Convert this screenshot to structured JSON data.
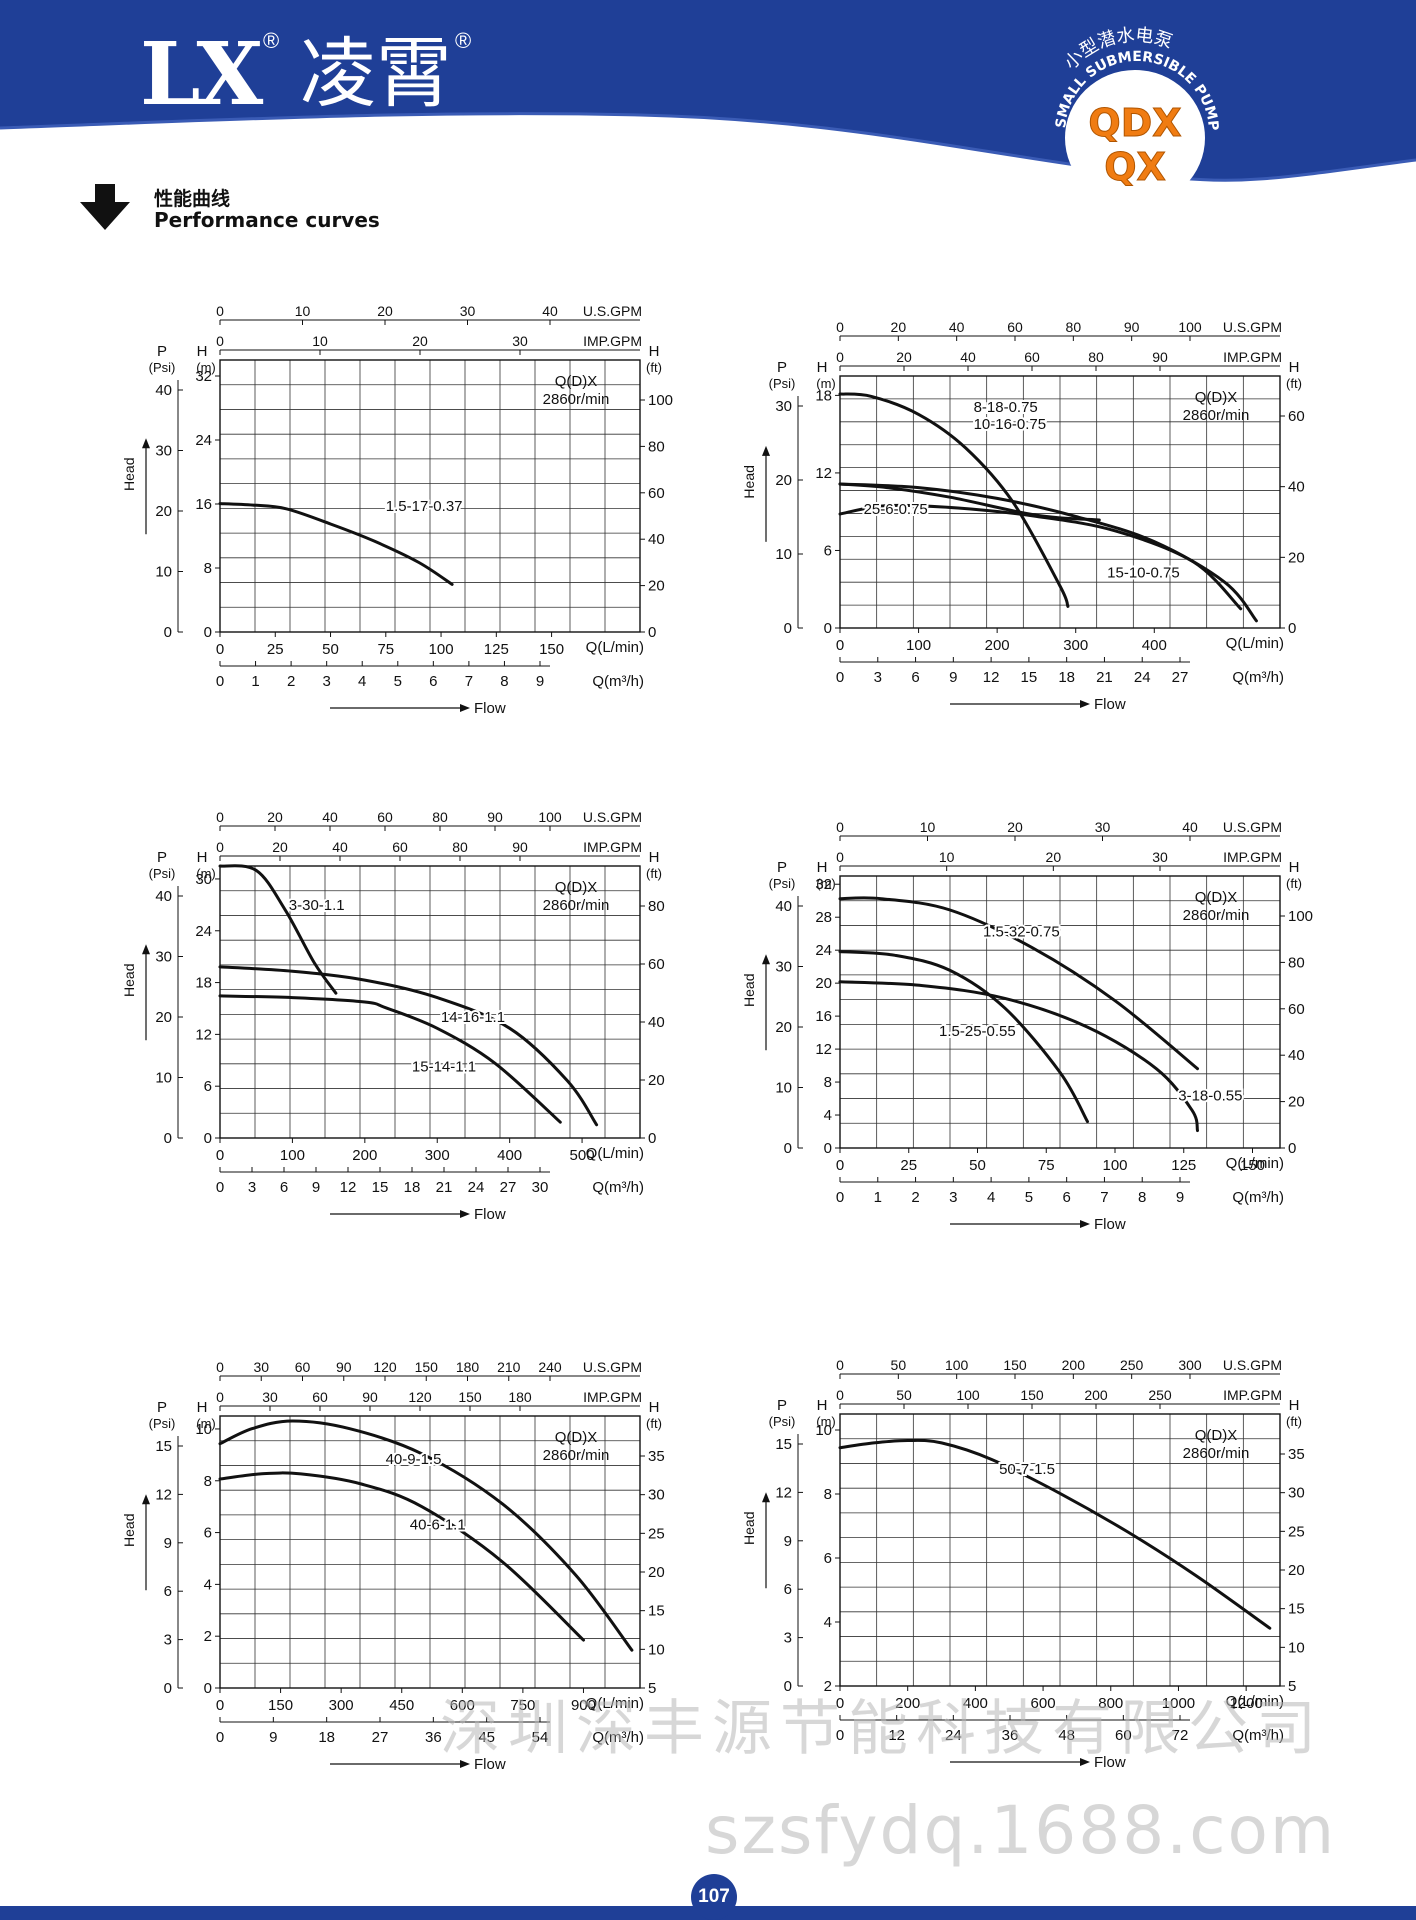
{
  "header": {
    "logo_text": "LX",
    "brand_cn": "凌霄",
    "reg_mark": "®",
    "badge_arc_cn": "小型潜水电泵",
    "badge_arc_en": "SMALL SUBMERSIBLE PUMP",
    "badge_model1": "QDX",
    "badge_model2": "QX",
    "colors": {
      "band": "#1f3f97",
      "accent": "#f07c12",
      "badge_text": "#ffffff"
    }
  },
  "section": {
    "title_cn": "性能曲线",
    "title_en": "Performance curves",
    "icon": "down-arrow-icon"
  },
  "watermarks": {
    "cn": "深圳深丰源节能科技有限公司",
    "url": "szsfydq.1688.com"
  },
  "page_number": "107",
  "chart_data": [
    {
      "type": "line",
      "model_label": "Q(D)X",
      "speed_label": "2860r/min",
      "grid": true,
      "xlim": [
        0,
        190
      ],
      "ylim": [
        0,
        36
      ],
      "x_bottom_ticks": [
        "0",
        "25",
        "50",
        "75",
        "100",
        "125",
        "150"
      ],
      "x_bottom_unit": "Q(L/min)",
      "x_m3h_ticks": [
        "0",
        "1",
        "2",
        "3",
        "4",
        "5",
        "6",
        "7",
        "8",
        "9"
      ],
      "x_m3h_unit": "Q(m³/h)",
      "x_top_ticks": [
        "0",
        "10",
        "20",
        "30",
        "40"
      ],
      "x_top_unit": "U.S.GPM",
      "x_imp_ticks": [
        "0",
        "10",
        "20",
        "30"
      ],
      "x_imp_unit": "IMP.GPM",
      "y_h_ticks": [
        "0",
        "8",
        "16",
        "24",
        "32"
      ],
      "y_h_unit": "H",
      "y_h_sub": "(m)",
      "y_ft_ticks": [
        "0",
        "20",
        "40",
        "60",
        "80",
        "100"
      ],
      "y_ft_unit": "H",
      "y_ft_sub": "(ft)",
      "y_psi_ticks": [
        "0",
        "10",
        "20",
        "30",
        "40"
      ],
      "y_psi_unit": "P",
      "y_psi_sub": "(Psi)",
      "ylabel": "Head",
      "xlabel": "Flow",
      "series": [
        {
          "name": "1.5-17-0.37",
          "x": [
            0,
            15,
            30,
            50,
            70,
            90,
            105
          ],
          "y": [
            17,
            16.8,
            16.3,
            14.3,
            12,
            9.2,
            6.3
          ],
          "label_x": 75,
          "label_y": 16
        }
      ]
    },
    {
      "type": "line",
      "model_label": "Q(D)X",
      "speed_label": "2860r/min",
      "grid": true,
      "xlim": [
        0,
        560
      ],
      "ylim": [
        0,
        21
      ],
      "x_bottom_ticks": [
        "0",
        "100",
        "200",
        "300",
        "400"
      ],
      "x_bottom_unit": "Q(L/min)",
      "x_m3h_ticks": [
        "0",
        "3",
        "6",
        "9",
        "12",
        "15",
        "18",
        "21",
        "24",
        "27"
      ],
      "x_m3h_unit": "Q(m³/h)",
      "x_top_ticks": [
        "0",
        "20",
        "40",
        "60",
        "80",
        "90",
        "100"
      ],
      "x_top_unit": "U.S.GPM",
      "x_imp_ticks": [
        "0",
        "20",
        "40",
        "60",
        "80",
        "90"
      ],
      "x_imp_unit": "IMP.GPM",
      "y_h_ticks": [
        "0",
        "6",
        "12",
        "18"
      ],
      "y_h_unit": "H",
      "y_h_sub": "(m)",
      "y_ft_ticks": [
        "0",
        "20",
        "40",
        "60"
      ],
      "y_ft_unit": "H",
      "y_ft_sub": "(ft)",
      "y_psi_ticks": [
        "0",
        "10",
        "20",
        "30"
      ],
      "y_psi_unit": "P",
      "y_psi_sub": "(Psi)",
      "ylabel": "Head",
      "xlabel": "Flow",
      "series": [
        {
          "name": "8-18-0.75",
          "x": [
            0,
            40,
            100,
            160,
            220,
            280,
            290
          ],
          "y": [
            19.5,
            19.3,
            17.8,
            15,
            10.5,
            3.5,
            1.8
          ],
          "label_x": 170,
          "label_y": 18
        },
        {
          "name": "10-16-0.75",
          "x": [
            0,
            60,
            140,
            250,
            330
          ],
          "y": [
            12,
            11.7,
            10.9,
            9.4,
            9.0
          ],
          "label_x": 170,
          "label_y": 16.6
        },
        {
          "name": "25-6-0.75",
          "x": [
            0,
            60,
            150,
            250,
            350,
            450,
            510
          ],
          "y": [
            9.5,
            10.2,
            10,
            9.3,
            8.1,
            5.5,
            1.6
          ],
          "label_x": 30,
          "label_y": 9.5
        },
        {
          "name": "15-10-0.75",
          "x": [
            0,
            100,
            200,
            300,
            400,
            490,
            530
          ],
          "y": [
            12,
            11.7,
            10.8,
            9.3,
            7.2,
            3.8,
            0.6
          ],
          "label_x": 340,
          "label_y": 4.2
        }
      ]
    },
    {
      "type": "line",
      "model_label": "Q(D)X",
      "speed_label": "2860r/min",
      "grid": true,
      "xlim": [
        0,
        580
      ],
      "ylim": [
        0,
        31
      ],
      "x_bottom_ticks": [
        "0",
        "100",
        "200",
        "300",
        "400",
        "500"
      ],
      "x_bottom_unit": "Q(L/min)",
      "x_m3h_ticks": [
        "0",
        "3",
        "6",
        "9",
        "12",
        "15",
        "18",
        "21",
        "24",
        "27",
        "30"
      ],
      "x_m3h_unit": "Q(m³/h)",
      "x_top_ticks": [
        "0",
        "20",
        "40",
        "60",
        "80",
        "90",
        "100"
      ],
      "x_top_unit": "U.S.GPM",
      "x_imp_ticks": [
        "0",
        "20",
        "40",
        "60",
        "80",
        "90"
      ],
      "x_imp_unit": "IMP.GPM",
      "y_h_ticks": [
        "0",
        "6",
        "12",
        "18",
        "24",
        "30"
      ],
      "y_h_unit": "H",
      "y_h_sub": "(m)",
      "y_ft_ticks": [
        "0",
        "20",
        "40",
        "60",
        "80"
      ],
      "y_ft_unit": "H",
      "y_ft_sub": "(ft)",
      "y_psi_ticks": [
        "0",
        "10",
        "20",
        "30",
        "40"
      ],
      "y_psi_unit": "P",
      "y_psi_sub": "(Psi)",
      "ylabel": "Head",
      "xlabel": "Flow",
      "series": [
        {
          "name": "3-30-1.1",
          "x": [
            0,
            50,
            90,
            130,
            160
          ],
          "y": [
            31,
            30.5,
            26,
            20,
            16.5
          ],
          "label_x": 95,
          "label_y": 26
        },
        {
          "name": "14-16-1.1",
          "x": [
            0,
            100,
            200,
            300,
            400,
            480,
            520
          ],
          "y": [
            19.5,
            19,
            18,
            16,
            12.5,
            6.5,
            1.5
          ],
          "label_x": 305,
          "label_y": 13.2
        },
        {
          "name": "15-14-1.1",
          "x": [
            0,
            100,
            200,
            230,
            300,
            380,
            470
          ],
          "y": [
            16.2,
            16,
            15.5,
            14.8,
            12.5,
            8.5,
            1.8
          ],
          "label_x": 265,
          "label_y": 7.6
        }
      ]
    },
    {
      "type": "line",
      "model_label": "Q(D)X",
      "speed_label": "2860r/min",
      "grid": true,
      "xlim": [
        0,
        160
      ],
      "ylim": [
        0,
        36
      ],
      "x_bottom_ticks": [
        "0",
        "25",
        "50",
        "75",
        "100",
        "125",
        "150"
      ],
      "x_bottom_unit": "Q(L/min)",
      "x_m3h_ticks": [
        "0",
        "1",
        "2",
        "3",
        "4",
        "5",
        "6",
        "7",
        "8",
        "9"
      ],
      "x_m3h_unit": "Q(m³/h)",
      "x_top_ticks": [
        "0",
        "10",
        "20",
        "30",
        "40"
      ],
      "x_top_unit": "U.S.GPM",
      "x_imp_ticks": [
        "0",
        "10",
        "20",
        "30"
      ],
      "x_imp_unit": "IMP.GPM",
      "y_h_ticks": [
        "0",
        "4",
        "8",
        "12",
        "16",
        "20",
        "24",
        "28",
        "32"
      ],
      "y_h_unit": "H",
      "y_h_sub": "(m)",
      "y_ft_ticks": [
        "0",
        "20",
        "40",
        "60",
        "80",
        "100"
      ],
      "y_ft_unit": "H",
      "y_ft_sub": "(ft)",
      "y_psi_ticks": [
        "0",
        "10",
        "20",
        "30",
        "40"
      ],
      "y_psi_unit": "P",
      "y_psi_sub": "(Psi)",
      "ylabel": "Head",
      "xlabel": "Flow",
      "series": [
        {
          "name": "1.5-32-0.75",
          "x": [
            0,
            15,
            40,
            70,
            100,
            130
          ],
          "y": [
            33,
            33,
            31.5,
            26.5,
            19.5,
            10.5
          ],
          "label_x": 52,
          "label_y": 28
        },
        {
          "name": "1.5-25-0.55",
          "x": [
            0,
            20,
            40,
            60,
            80,
            90
          ],
          "y": [
            26,
            25.5,
            23.5,
            18.5,
            10,
            3.5
          ],
          "label_x": 36,
          "label_y": 14.8
        },
        {
          "name": "3-18-0.55",
          "x": [
            0,
            30,
            60,
            90,
            115,
            128,
            130
          ],
          "y": [
            22,
            21.5,
            19.8,
            16,
            10.5,
            5,
            2.3
          ],
          "label_x": 123,
          "label_y": 6.3
        }
      ]
    },
    {
      "type": "line",
      "model_label": "Q(D)X",
      "speed_label": "2860r/min",
      "grid": true,
      "xlim": [
        0,
        1040
      ],
      "ylim": [
        0,
        10.8
      ],
      "x_bottom_ticks": [
        "0",
        "150",
        "300",
        "450",
        "600",
        "750",
        "900"
      ],
      "x_bottom_unit": "Q(L/min)",
      "x_m3h_ticks": [
        "0",
        "9",
        "18",
        "27",
        "36",
        "45",
        "54"
      ],
      "x_m3h_unit": "Q(m³/h)",
      "x_top_ticks": [
        "0",
        "30",
        "60",
        "90",
        "120",
        "150",
        "180",
        "210",
        "240"
      ],
      "x_top_unit": "U.S.GPM",
      "x_imp_ticks": [
        "0",
        "30",
        "60",
        "90",
        "120",
        "150",
        "180"
      ],
      "x_imp_unit": "IMP.GPM",
      "y_h_ticks": [
        "0",
        "2",
        "4",
        "6",
        "8",
        "10"
      ],
      "y_h_unit": "H",
      "y_h_sub": "(m)",
      "y_ft_ticks": [
        "5",
        "10",
        "15",
        "20",
        "25",
        "30",
        "35"
      ],
      "y_ft_unit": "H",
      "y_ft_sub": "(ft)",
      "y_psi_ticks": [
        "0",
        "3",
        "6",
        "9",
        "12",
        "15"
      ],
      "y_psi_unit": "P",
      "y_psi_sub": "(Psi)",
      "ylabel": "Head",
      "xlabel": "Flow",
      "series": [
        {
          "name": "40-9-1.5",
          "x": [
            0,
            80,
            180,
            320,
            500,
            700,
            880,
            1020
          ],
          "y": [
            9.7,
            10.3,
            10.6,
            10.3,
            9.3,
            7.3,
            4.5,
            1.5
          ],
          "label_x": 410,
          "label_y": 8.9
        },
        {
          "name": "40-6-1.1",
          "x": [
            0,
            100,
            200,
            350,
            500,
            700,
            900
          ],
          "y": [
            8.3,
            8.5,
            8.5,
            8.1,
            7.2,
            5,
            1.9
          ],
          "label_x": 470,
          "label_y": 6.3
        }
      ]
    },
    {
      "type": "line",
      "model_label": "Q(D)X",
      "speed_label": "2860r/min",
      "grid": true,
      "xlim": [
        0,
        1300
      ],
      "ylim": [
        0,
        11.3
      ],
      "x_bottom_ticks": [
        "0",
        "200",
        "400",
        "600",
        "800",
        "1000",
        "1200"
      ],
      "x_bottom_unit": "Q(L/min)",
      "x_m3h_ticks": [
        "0",
        "12",
        "24",
        "36",
        "48",
        "60",
        "72"
      ],
      "x_m3h_unit": "Q(m³/h)",
      "x_top_ticks": [
        "0",
        "50",
        "100",
        "150",
        "200",
        "250",
        "300"
      ],
      "x_top_unit": "U.S.GPM",
      "x_imp_ticks": [
        "0",
        "50",
        "100",
        "150",
        "200",
        "250"
      ],
      "x_imp_unit": "IMP.GPM",
      "y_h_ticks": [
        "2",
        "4",
        "6",
        "8",
        "10"
      ],
      "y_h_unit": "H",
      "y_h_sub": "(m)",
      "y_ft_ticks": [
        "5",
        "10",
        "15",
        "20",
        "25",
        "30",
        "35"
      ],
      "y_ft_unit": "H",
      "y_ft_sub": "(ft)",
      "y_psi_ticks": [
        "0",
        "3",
        "6",
        "9",
        "12",
        "15"
      ],
      "y_psi_unit": "P",
      "y_psi_sub": "(Psi)",
      "ylabel": "Head",
      "xlabel": "Flow",
      "series": [
        {
          "name": "50-7-1.5",
          "x": [
            0,
            100,
            200,
            300,
            450,
            650,
            850,
            1050,
            1270
          ],
          "y": [
            9.9,
            10.1,
            10.2,
            10.1,
            9.4,
            8,
            6.4,
            4.6,
            2.4
          ],
          "label_x": 470,
          "label_y": 8.8
        }
      ]
    }
  ]
}
